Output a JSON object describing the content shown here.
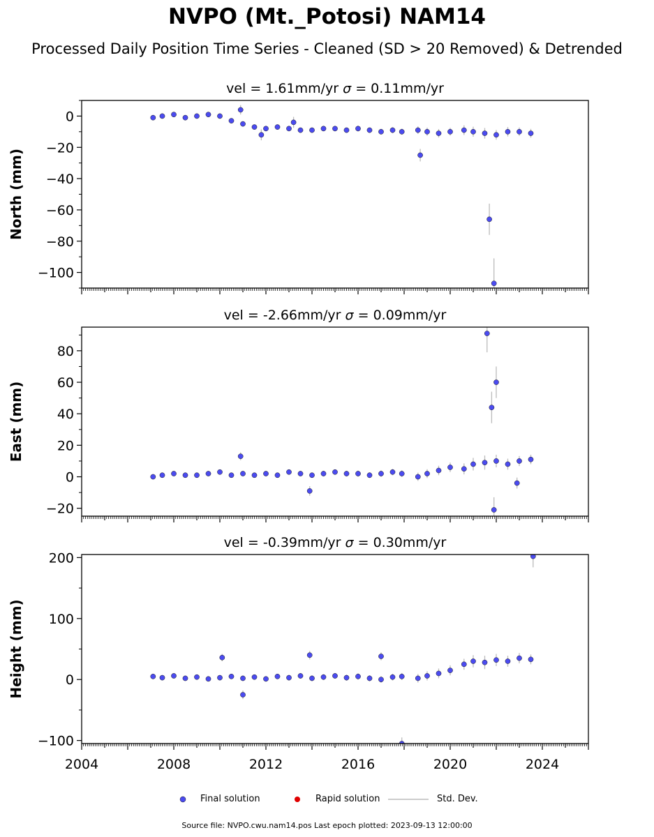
{
  "title": "NVPO (Mt._Potosi) NAM14",
  "subtitle": "Processed Daily Position Time Series - Cleaned (SD > 20 Removed) & Detrended",
  "legend": {
    "final": "Final solution",
    "rapid": "Rapid solution",
    "sd": "Std. Dev."
  },
  "footer": "Source file: NVPO.cwu.nam14.pos  Last epoch plotted: 2023-09-13 12:00:00",
  "colors": {
    "final": "#4b4bf0",
    "rapid": "#e00000",
    "sd": "#bbbbbb",
    "edge": "#1a1a1a"
  },
  "chart_data": [
    {
      "type": "scatter",
      "vel_text": "vel = 1.61mm/yr",
      "sigma_text": "= 0.11mm/yr",
      "ylabel": "North (mm)",
      "xlim": [
        2004,
        2026
      ],
      "ylim": [
        -110,
        10
      ],
      "yticks": [
        0,
        -20,
        -40,
        -60,
        -80,
        -100
      ],
      "ytick_labels": [
        "0",
        "−20",
        "−40",
        "−60",
        "−80",
        "−100"
      ],
      "series": [
        {
          "name": "Final solution",
          "x": [
            2007.1,
            2007.5,
            2008.0,
            2008.5,
            2009.0,
            2009.5,
            2010.0,
            2010.5,
            2011.0,
            2011.5,
            2012.0,
            2012.5,
            2013.0,
            2013.5,
            2014.0,
            2014.5,
            2015.0,
            2015.5,
            2016.0,
            2016.5,
            2017.0,
            2017.5,
            2017.9,
            2018.6,
            2019.0,
            2019.5,
            2020.0,
            2020.6,
            2021.0,
            2021.5,
            2022.0,
            2022.5,
            2023.0,
            2023.5,
            2010.9,
            2011.8,
            2013.2,
            2018.7,
            2021.7,
            2021.9
          ],
          "y": [
            -1,
            0,
            1,
            -1,
            0,
            1,
            0,
            -3,
            -5,
            -7,
            -8,
            -7,
            -8,
            -9,
            -9,
            -8,
            -8,
            -9,
            -8,
            -9,
            -10,
            -9,
            -10,
            -9,
            -10,
            -11,
            -10,
            -9,
            -10,
            -11,
            -12,
            -10,
            -10,
            -11,
            4,
            -12,
            -4,
            -25,
            -66,
            -107
          ]
        }
      ],
      "std_dev": [
        0.8,
        0.9,
        1.0,
        0.9,
        1.0,
        1.1,
        1.2,
        1.2,
        1.4,
        1.3,
        1.5,
        1.4,
        1.5,
        1.6,
        1.5,
        1.6,
        1.7,
        1.6,
        1.8,
        1.7,
        1.8,
        1.9,
        1.9,
        2.4,
        2.6,
        2.7,
        2.5,
        3.1,
        3.2,
        3.4,
        3.1,
        3.0,
        2.7,
        2.8,
        3.0,
        3.5,
        3.5,
        4.0,
        10,
        16
      ]
    },
    {
      "type": "scatter",
      "vel_text": "vel = -2.66mm/yr",
      "sigma_text": "= 0.09mm/yr",
      "ylabel": "East (mm)",
      "xlim": [
        2004,
        2026
      ],
      "ylim": [
        -25,
        95
      ],
      "yticks": [
        80,
        60,
        40,
        20,
        0,
        -20
      ],
      "ytick_labels": [
        "80",
        "60",
        "40",
        "20",
        "0",
        "−20"
      ],
      "series": [
        {
          "name": "Final solution",
          "x": [
            2007.1,
            2007.5,
            2008.0,
            2008.5,
            2009.0,
            2009.5,
            2010.0,
            2010.5,
            2011.0,
            2011.5,
            2012.0,
            2012.5,
            2013.0,
            2013.5,
            2014.0,
            2014.5,
            2015.0,
            2015.5,
            2016.0,
            2016.5,
            2017.0,
            2017.5,
            2017.9,
            2018.6,
            2019.0,
            2019.5,
            2020.0,
            2020.6,
            2021.0,
            2021.5,
            2022.0,
            2022.5,
            2023.0,
            2023.5,
            2010.9,
            2013.9,
            2021.6,
            2021.8,
            2022.0,
            2022.9,
            2021.9
          ],
          "y": [
            0,
            1,
            2,
            1,
            1,
            2,
            3,
            1,
            2,
            1,
            2,
            1,
            3,
            2,
            1,
            2,
            3,
            2,
            2,
            1,
            2,
            3,
            2,
            0,
            2,
            4,
            6,
            5,
            8,
            9,
            10,
            8,
            10,
            11,
            13,
            -9,
            91,
            44,
            60,
            -4,
            -21
          ]
        }
      ],
      "std_dev": [
        1.0,
        1.0,
        1.2,
        1.1,
        1.2,
        1.3,
        1.4,
        1.4,
        1.5,
        1.5,
        1.6,
        1.5,
        1.7,
        1.6,
        1.7,
        1.8,
        1.7,
        1.8,
        1.9,
        1.8,
        2.0,
        2.0,
        2.1,
        2.6,
        2.8,
        3.0,
        3.0,
        3.5,
        4.0,
        4.5,
        4.0,
        3.5,
        3.2,
        3.0,
        2.5,
        3.0,
        12,
        10,
        10,
        3.5,
        8
      ]
    },
    {
      "type": "scatter",
      "vel_text": "vel = -0.39mm/yr",
      "sigma_text": "= 0.30mm/yr",
      "ylabel": "Height (mm)",
      "xlim": [
        2004,
        2026
      ],
      "ylim": [
        -105,
        205
      ],
      "yticks": [
        200,
        100,
        0,
        -100
      ],
      "ytick_labels": [
        "200",
        "100",
        "0",
        "−100"
      ],
      "xticks": [
        2004,
        2008,
        2012,
        2016,
        2020,
        2024
      ],
      "series": [
        {
          "name": "Final solution",
          "x": [
            2007.1,
            2007.5,
            2008.0,
            2008.5,
            2009.0,
            2009.5,
            2010.0,
            2010.5,
            2011.0,
            2011.5,
            2012.0,
            2012.5,
            2013.0,
            2013.5,
            2014.0,
            2014.5,
            2015.0,
            2015.5,
            2016.0,
            2016.5,
            2017.0,
            2017.5,
            2017.9,
            2018.6,
            2019.0,
            2019.5,
            2020.0,
            2020.6,
            2021.0,
            2021.5,
            2022.0,
            2022.5,
            2023.0,
            2023.5,
            2010.1,
            2011.0,
            2013.9,
            2017.0,
            2017.9,
            2023.6
          ],
          "y": [
            5,
            3,
            6,
            2,
            4,
            1,
            3,
            5,
            2,
            4,
            1,
            5,
            3,
            6,
            2,
            4,
            6,
            3,
            5,
            2,
            0,
            4,
            5,
            2,
            6,
            10,
            15,
            25,
            30,
            28,
            32,
            30,
            35,
            33,
            36,
            -25,
            40,
            38,
            -105,
            202
          ]
        }
      ],
      "std_dev": [
        3.0,
        3.2,
        3.4,
        3.3,
        3.5,
        3.7,
        3.9,
        4.0,
        4.2,
        4.1,
        4.4,
        4.3,
        4.6,
        4.5,
        4.7,
        4.8,
        4.6,
        4.9,
        5.1,
        5.0,
        5.3,
        5.5,
        5.7,
        7.0,
        7.5,
        8.0,
        8.2,
        9.0,
        10.0,
        11.0,
        10.0,
        9.0,
        8.5,
        8.0,
        6.0,
        7.0,
        7.0,
        6.5,
        10,
        18
      ]
    }
  ]
}
